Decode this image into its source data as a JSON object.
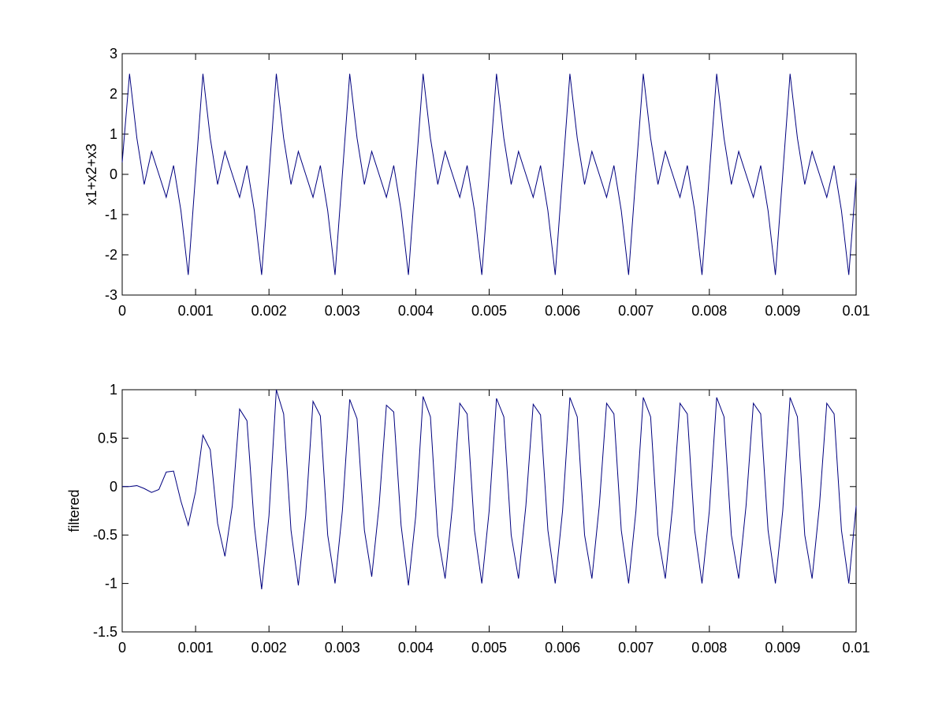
{
  "chart_data": [
    {
      "type": "line",
      "ylabel": "x1+x2+x3",
      "x": [
        0,
        0.0001,
        0.0002,
        0.0003,
        0.0004,
        0.0005,
        0.0006,
        0.0007,
        0.0008,
        0.0009,
        0.001,
        0.0011,
        0.0012,
        0.0013,
        0.0014,
        0.0015,
        0.0016,
        0.0017,
        0.0018,
        0.0019,
        0.002,
        0.0021,
        0.0022,
        0.0023,
        0.0024,
        0.0025,
        0.0026,
        0.0027,
        0.0028,
        0.0029,
        0.003,
        0.0031,
        0.0032,
        0.0033,
        0.0034,
        0.0035,
        0.0036,
        0.0037,
        0.0038,
        0.0039,
        0.004,
        0.0041,
        0.0042,
        0.0043,
        0.0044,
        0.0045,
        0.0046,
        0.0047,
        0.0048,
        0.0049,
        0.005,
        0.0051,
        0.0052,
        0.0053,
        0.0054,
        0.0055,
        0.0056,
        0.0057,
        0.0058,
        0.0059,
        0.006,
        0.0061,
        0.0062,
        0.0063,
        0.0064,
        0.0065,
        0.0066,
        0.0067,
        0.0068,
        0.0069,
        0.007,
        0.0071,
        0.0072,
        0.0073,
        0.0074,
        0.0075,
        0.0076,
        0.0077,
        0.0078,
        0.0079,
        0.008,
        0.0081,
        0.0082,
        0.0083,
        0.0084,
        0.0085,
        0.0086,
        0.0087,
        0.0088,
        0.0089,
        0.009,
        0.0091,
        0.0092,
        0.0093,
        0.0094,
        0.0095,
        0.0096,
        0.0097,
        0.0098,
        0.0099,
        0.01
      ],
      "series": [
        {
          "color": "#00007f",
          "values": [
            0.3,
            2.5,
            0.9,
            -0.25,
            0.57,
            0,
            -0.57,
            0.22,
            -0.9,
            -2.5,
            0,
            2.5,
            0.9,
            -0.25,
            0.57,
            0,
            -0.57,
            0.22,
            -0.9,
            -2.5,
            0,
            2.5,
            0.9,
            -0.25,
            0.57,
            0,
            -0.57,
            0.22,
            -0.9,
            -2.5,
            0,
            2.5,
            0.9,
            -0.25,
            0.57,
            0,
            -0.57,
            0.22,
            -0.9,
            -2.5,
            0,
            2.5,
            0.9,
            -0.25,
            0.57,
            0,
            -0.57,
            0.22,
            -0.9,
            -2.5,
            0,
            2.5,
            0.9,
            -0.25,
            0.57,
            0,
            -0.57,
            0.22,
            -0.9,
            -2.5,
            0,
            2.5,
            0.9,
            -0.25,
            0.57,
            0,
            -0.57,
            0.22,
            -0.9,
            -2.5,
            0,
            2.5,
            0.9,
            -0.25,
            0.57,
            0,
            -0.57,
            0.22,
            -0.9,
            -2.5,
            0,
            2.5,
            0.9,
            -0.25,
            0.57,
            0,
            -0.57,
            0.22,
            -0.9,
            -2.5,
            0,
            2.5,
            0.9,
            -0.25,
            0.57,
            0,
            -0.57,
            0.22,
            -0.9,
            -2.5,
            -0.1
          ]
        }
      ],
      "xlim": [
        0,
        0.01
      ],
      "ylim": [
        -3,
        3
      ],
      "xticks": [
        0,
        0.001,
        0.002,
        0.003,
        0.004,
        0.005,
        0.006,
        0.007,
        0.008,
        0.009,
        0.01
      ],
      "yticks": [
        -3,
        -2,
        -1,
        0,
        1,
        2,
        3
      ]
    },
    {
      "type": "line",
      "ylabel": "filtered",
      "x": [
        0,
        0.0001,
        0.0002,
        0.0003,
        0.0004,
        0.0005,
        0.0006,
        0.0007,
        0.0008,
        0.0009,
        0.001,
        0.0011,
        0.0012,
        0.0013,
        0.0014,
        0.0015,
        0.0016,
        0.0017,
        0.0018,
        0.0019,
        0.002,
        0.0021,
        0.0022,
        0.0023,
        0.0024,
        0.0025,
        0.0026,
        0.0027,
        0.0028,
        0.0029,
        0.003,
        0.0031,
        0.0032,
        0.0033,
        0.0034,
        0.0035,
        0.0036,
        0.0037,
        0.0038,
        0.0039,
        0.004,
        0.0041,
        0.0042,
        0.0043,
        0.0044,
        0.0045,
        0.0046,
        0.0047,
        0.0048,
        0.0049,
        0.005,
        0.0051,
        0.0052,
        0.0053,
        0.0054,
        0.0055,
        0.0056,
        0.0057,
        0.0058,
        0.0059,
        0.006,
        0.0061,
        0.0062,
        0.0063,
        0.0064,
        0.0065,
        0.0066,
        0.0067,
        0.0068,
        0.0069,
        0.007,
        0.0071,
        0.0072,
        0.0073,
        0.0074,
        0.0075,
        0.0076,
        0.0077,
        0.0078,
        0.0079,
        0.008,
        0.0081,
        0.0082,
        0.0083,
        0.0084,
        0.0085,
        0.0086,
        0.0087,
        0.0088,
        0.0089,
        0.009,
        0.0091,
        0.0092,
        0.0093,
        0.0094,
        0.0095,
        0.0096,
        0.0097,
        0.0098,
        0.0099,
        0.01
      ],
      "series": [
        {
          "color": "#00007f",
          "values": [
            0,
            0,
            0.01,
            -0.02,
            -0.06,
            -0.03,
            0.15,
            0.16,
            -0.15,
            -0.4,
            -0.05,
            0.53,
            0.38,
            -0.38,
            -0.72,
            -0.2,
            0.8,
            0.68,
            -0.4,
            -1.06,
            -0.3,
            1.0,
            0.75,
            -0.45,
            -1.02,
            -0.3,
            0.88,
            0.73,
            -0.5,
            -1.0,
            -0.25,
            0.9,
            0.7,
            -0.45,
            -0.93,
            -0.2,
            0.84,
            0.77,
            -0.4,
            -1.02,
            -0.3,
            0.93,
            0.72,
            -0.5,
            -0.95,
            -0.2,
            0.86,
            0.75,
            -0.45,
            -1.0,
            -0.25,
            0.91,
            0.72,
            -0.5,
            -0.95,
            -0.2,
            0.85,
            0.74,
            -0.45,
            -1.0,
            -0.25,
            0.92,
            0.72,
            -0.5,
            -0.95,
            -0.2,
            0.86,
            0.75,
            -0.45,
            -1.0,
            -0.25,
            0.92,
            0.72,
            -0.5,
            -0.95,
            -0.2,
            0.86,
            0.75,
            -0.45,
            -1.0,
            -0.25,
            0.92,
            0.72,
            -0.5,
            -0.95,
            -0.2,
            0.86,
            0.75,
            -0.45,
            -1.0,
            -0.25,
            0.92,
            0.72,
            -0.5,
            -0.95,
            -0.2,
            0.86,
            0.75,
            -0.45,
            -1.0,
            -0.2
          ]
        }
      ],
      "xlim": [
        0,
        0.01
      ],
      "ylim": [
        -1.5,
        1
      ],
      "xticks": [
        0,
        0.001,
        0.002,
        0.003,
        0.004,
        0.005,
        0.006,
        0.007,
        0.008,
        0.009,
        0.01
      ],
      "yticks": [
        -1.5,
        -1,
        -0.5,
        0,
        0.5,
        1
      ]
    }
  ]
}
